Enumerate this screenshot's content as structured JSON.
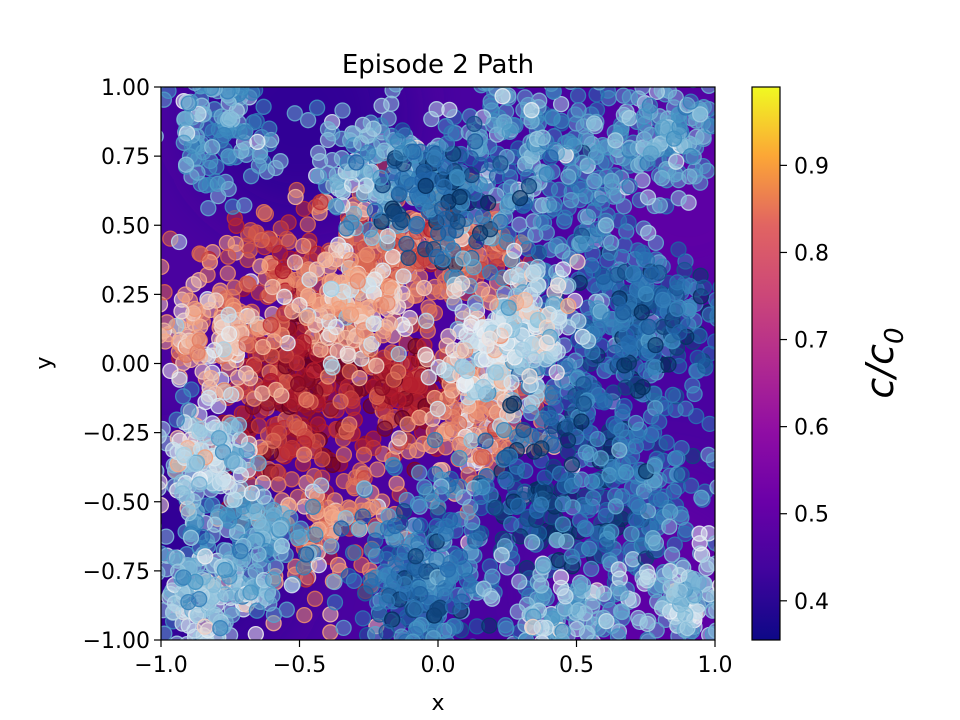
{
  "chart_data": {
    "type": "scatter",
    "title": "Episode 2 Path",
    "xlabel": "x",
    "ylabel": "y",
    "xlim": [
      -1.0,
      1.0
    ],
    "ylim": [
      -1.0,
      1.0
    ],
    "x_ticks": [
      -1.0,
      -0.5,
      0.0,
      0.5,
      1.0
    ],
    "y_ticks": [
      -1.0,
      -0.75,
      -0.5,
      -0.25,
      0.0,
      0.25,
      0.5,
      0.75,
      1.0
    ],
    "x_tick_labels": [
      "−1.0",
      "−0.5",
      "0.0",
      "0.5",
      "1.0"
    ],
    "y_tick_labels": [
      "−1.00",
      "−0.75",
      "−0.50",
      "−0.25",
      "0.00",
      "0.25",
      "0.50",
      "0.75",
      "1.00"
    ],
    "grid": false,
    "background_field": {
      "colormap": "plasma",
      "regions": [
        {
          "x": -0.5,
          "y": 0.9,
          "value": 0.4
        },
        {
          "x": 0.8,
          "y": -0.8,
          "value": 0.5
        },
        {
          "x": 0.9,
          "y": 0.6,
          "value": 0.5
        },
        {
          "x": -0.9,
          "y": -0.7,
          "value": 0.4
        }
      ]
    },
    "scatter_colormap": "RdBu",
    "colorbar": {
      "label_main": "c/c",
      "label_sub": "0",
      "colormap": "plasma",
      "range": [
        0.355,
        0.99
      ],
      "ticks": [
        0.4,
        0.5,
        0.6,
        0.7,
        0.8,
        0.9
      ],
      "tick_labels": [
        "0.4",
        "0.5",
        "0.6",
        "0.7",
        "0.8",
        "0.9"
      ]
    },
    "path_clusters": [
      {
        "x": -0.45,
        "y": 0.0,
        "spread": 0.12,
        "value": 0.92
      },
      {
        "x": -0.55,
        "y": -0.25,
        "spread": 0.15,
        "value": 0.85
      },
      {
        "x": -0.1,
        "y": -0.1,
        "spread": 0.1,
        "value": 0.88
      },
      {
        "x": -0.6,
        "y": 0.3,
        "spread": 0.14,
        "value": 0.75
      },
      {
        "x": -0.2,
        "y": 0.4,
        "spread": 0.12,
        "value": 0.7
      },
      {
        "x": 0.1,
        "y": 0.4,
        "spread": 0.1,
        "value": 0.72
      },
      {
        "x": -0.4,
        "y": -0.55,
        "spread": 0.16,
        "value": 0.68
      },
      {
        "x": 0.15,
        "y": -0.25,
        "spread": 0.12,
        "value": 0.65
      },
      {
        "x": -0.8,
        "y": 0.1,
        "spread": 0.12,
        "value": 0.6
      },
      {
        "x": 0.2,
        "y": 0.0,
        "spread": 0.1,
        "value": 0.48
      },
      {
        "x": -0.3,
        "y": 0.2,
        "spread": 0.1,
        "value": 0.55
      },
      {
        "x": -0.2,
        "y": 0.7,
        "spread": 0.12,
        "value": 0.35
      },
      {
        "x": 0.55,
        "y": 0.3,
        "spread": 0.16,
        "value": 0.2
      },
      {
        "x": 0.5,
        "y": 0.7,
        "spread": 0.18,
        "value": 0.25
      },
      {
        "x": 0.3,
        "y": 0.85,
        "spread": 0.15,
        "value": 0.3
      },
      {
        "x": -0.8,
        "y": 0.85,
        "spread": 0.12,
        "value": 0.28
      },
      {
        "x": 0.0,
        "y": 0.6,
        "spread": 0.12,
        "value": 0.1
      },
      {
        "x": 0.6,
        "y": -0.1,
        "spread": 0.15,
        "value": 0.15
      },
      {
        "x": 0.4,
        "y": -0.5,
        "spread": 0.15,
        "value": 0.08
      },
      {
        "x": 0.7,
        "y": -0.5,
        "spread": 0.14,
        "value": 0.18
      },
      {
        "x": 0.8,
        "y": 0.2,
        "spread": 0.12,
        "value": 0.12
      },
      {
        "x": 0.85,
        "y": 0.85,
        "spread": 0.12,
        "value": 0.3
      },
      {
        "x": 0.0,
        "y": -0.65,
        "spread": 0.15,
        "value": 0.22
      },
      {
        "x": -0.1,
        "y": -0.85,
        "spread": 0.12,
        "value": 0.15
      },
      {
        "x": 0.45,
        "y": -0.9,
        "spread": 0.12,
        "value": 0.35
      },
      {
        "x": -0.85,
        "y": -0.85,
        "spread": 0.1,
        "value": 0.4
      },
      {
        "x": -0.7,
        "y": -0.65,
        "spread": 0.12,
        "value": 0.3
      },
      {
        "x": 0.9,
        "y": -0.85,
        "spread": 0.1,
        "value": 0.38
      },
      {
        "x": -0.85,
        "y": -0.35,
        "spread": 0.1,
        "value": 0.42
      },
      {
        "x": 0.3,
        "y": 0.15,
        "spread": 0.1,
        "value": 0.45
      }
    ]
  }
}
